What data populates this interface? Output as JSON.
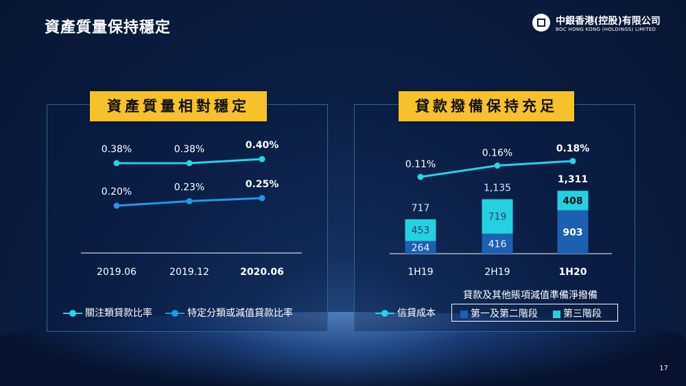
{
  "slide": {
    "title": "資產質量保持穩定",
    "page_number": "17"
  },
  "logo": {
    "name_cn": "中銀香港(控股)有限公司",
    "name_en": "BOC HONG KONG (HOLDINGS) LIMITED"
  },
  "colors": {
    "background": "#0b1e44",
    "banner": "#f6c12a",
    "series_attention": "#22d6e6",
    "series_impaired": "#1e9be8",
    "bar_stage12": "#1d5fb0",
    "bar_stage3": "#25d1e0"
  },
  "left_panel": {
    "banner": "資產質量相對穩定"
  },
  "right_panel": {
    "banner": "貸款撥備保持充足",
    "provision_title": "貸款及其他賬項減值準備淨撥備"
  },
  "chart_data": [
    {
      "type": "line",
      "categories": [
        "2019.06",
        "2019.12",
        "2020.06"
      ],
      "series": [
        {
          "name": "關注類貸款比率",
          "values": [
            0.38,
            0.38,
            0.4
          ],
          "labels": [
            "0.38%",
            "0.38%",
            "0.40%"
          ]
        },
        {
          "name": "特定分類或減值貸款比率",
          "values": [
            0.2,
            0.23,
            0.25
          ],
          "labels": [
            "0.20%",
            "0.23%",
            "0.25%"
          ]
        }
      ],
      "bold_last": true
    },
    {
      "type": "bar",
      "categories": [
        "1H19",
        "2H19",
        "1H20"
      ],
      "stacked": true,
      "series": [
        {
          "name": "第一及第二階段",
          "values": [
            264,
            416,
            903
          ]
        },
        {
          "name": "第三階段",
          "values": [
            453,
            719,
            408
          ]
        }
      ],
      "totals": [
        "717",
        "1,135",
        "1,311"
      ],
      "line_series": {
        "name": "信貸成本",
        "values": [
          0.11,
          0.16,
          0.18
        ],
        "labels": [
          "0.11%",
          "0.16%",
          "0.18%"
        ]
      },
      "bold_last": true
    }
  ]
}
